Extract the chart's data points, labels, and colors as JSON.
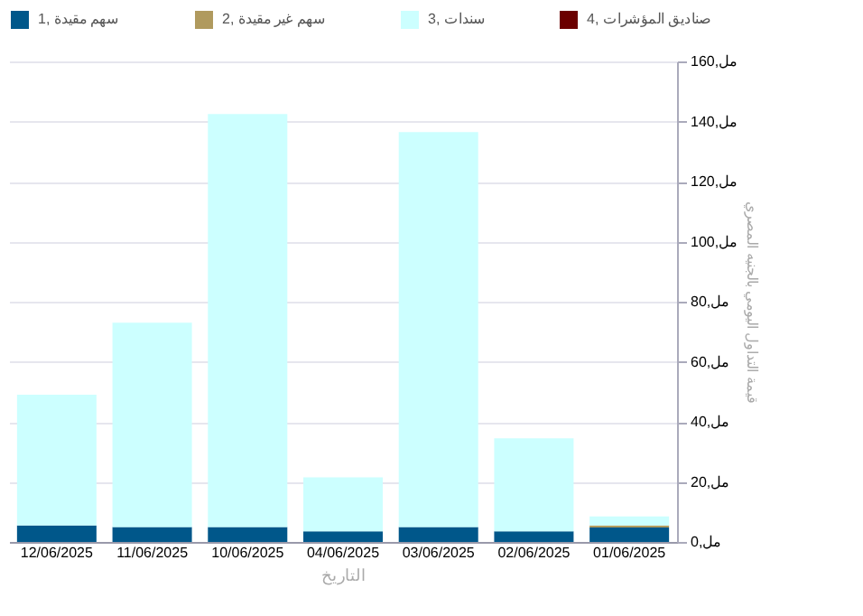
{
  "chart_data": {
    "type": "bar",
    "stacked": true,
    "xlabel": "التاريخ",
    "ylabel": "قيمة التداول اليومي بالجنيه المصري",
    "categories": [
      "12/06/2025",
      "11/06/2025",
      "10/06/2025",
      "04/06/2025",
      "03/06/2025",
      "02/06/2025",
      "01/06/2025"
    ],
    "series": [
      {
        "name": "1, سهم مقيدة",
        "color": "#00578a",
        "values": [
          5.5,
          5,
          5,
          3.5,
          5,
          3.5,
          4.8
        ]
      },
      {
        "name": "2, سهم غير مقيدة",
        "color": "#b09a5e",
        "values": [
          0,
          0,
          0,
          0,
          0,
          0,
          0.7
        ]
      },
      {
        "name": "3, سندات",
        "color": "#ccffff",
        "values": [
          43.5,
          68,
          137.5,
          18,
          131.5,
          31,
          3
        ]
      },
      {
        "name": "4, صناديق المؤشرات",
        "color": "#6b0000",
        "values": [
          0,
          0,
          0,
          0,
          0,
          0,
          0
        ]
      }
    ],
    "ylim": [
      0,
      160
    ],
    "yticks": [
      {
        "value": 0,
        "label": "مل,0"
      },
      {
        "value": 20,
        "label": "مل,20"
      },
      {
        "value": 40,
        "label": "مل,40"
      },
      {
        "value": 60,
        "label": "مل,60"
      },
      {
        "value": 80,
        "label": "مل,80"
      },
      {
        "value": 100,
        "label": "مل,100"
      },
      {
        "value": 120,
        "label": "مل,120"
      },
      {
        "value": 140,
        "label": "مل,140"
      },
      {
        "value": 160,
        "label": "مل,160"
      }
    ],
    "grid": "y",
    "legend": "top"
  }
}
